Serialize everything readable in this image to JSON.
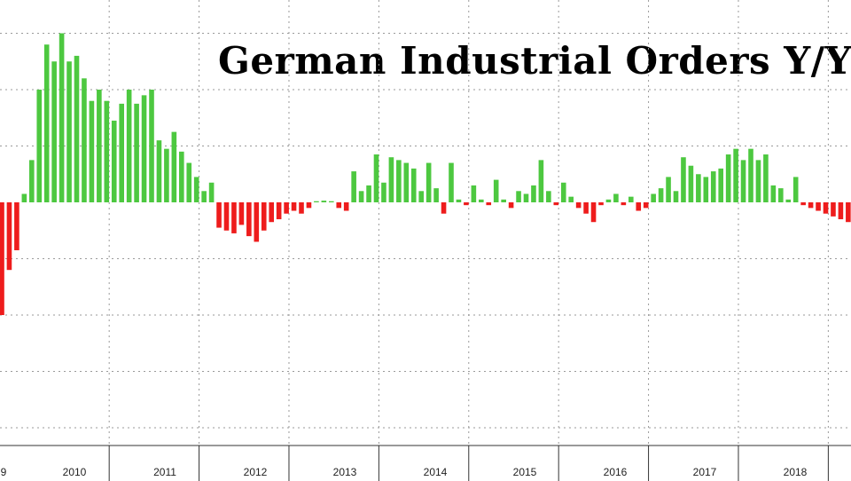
{
  "chart_data": {
    "type": "bar",
    "title": "German Industrial Orders Y/Y",
    "xlabel": "",
    "ylabel": "",
    "ylim": [
      -42,
      30
    ],
    "grid": true,
    "x_tick_labels": [
      "9",
      "2010",
      "2011",
      "2012",
      "2013",
      "2014",
      "2015",
      "2016",
      "2017",
      "2018"
    ],
    "colors": {
      "positive": "#4dc840",
      "negative": "#ee1c1c",
      "grid": "#9a9a9a",
      "axis": "#333333"
    },
    "series": [
      {
        "start": "2009-01",
        "frequency": "monthly",
        "values": [
          -20.0,
          -12.0,
          -8.5,
          1.5,
          7.5,
          20.0,
          28.0,
          25.0,
          30.0,
          25.0,
          26.0,
          22.0,
          18.0,
          20.0,
          18.0,
          14.5,
          17.5,
          20.0,
          17.5,
          19.0,
          20.0,
          11.0,
          9.5,
          12.5,
          9.0,
          7.0,
          4.5,
          2.0,
          3.5,
          -4.5,
          -5.0,
          -5.5,
          -4.0,
          -6.0,
          -7.0,
          -5.0,
          -3.5,
          -3.0,
          -2.0,
          -1.5,
          -2.0,
          -1.0,
          0.2,
          0.3,
          0.2,
          -1.0,
          -1.5,
          5.5,
          2.0,
          3.0,
          8.5,
          3.5,
          8.0,
          7.5,
          7.0,
          6.0,
          2.0,
          7.0,
          2.5,
          -2.0,
          7.0,
          0.5,
          -0.5,
          3.0,
          0.5,
          -0.5,
          4.0,
          0.5,
          -1.0,
          2.0,
          1.5,
          3.0,
          7.5,
          2.0,
          -0.5,
          3.5,
          1.0,
          -1.0,
          -2.0,
          -3.5,
          -0.5,
          0.5,
          1.5,
          -0.5,
          1.0,
          -1.5,
          -1.0,
          1.5,
          2.5,
          4.5,
          2.0,
          8.0,
          6.5,
          5.0,
          4.5,
          5.5,
          6.0,
          8.5,
          9.5,
          7.5,
          9.5,
          7.5,
          8.5,
          3.0,
          2.5,
          0.5,
          4.5,
          -0.5,
          -1.0,
          -1.5,
          -2.0,
          -2.5,
          -3.0,
          -3.5,
          -6.5
        ]
      }
    ]
  }
}
